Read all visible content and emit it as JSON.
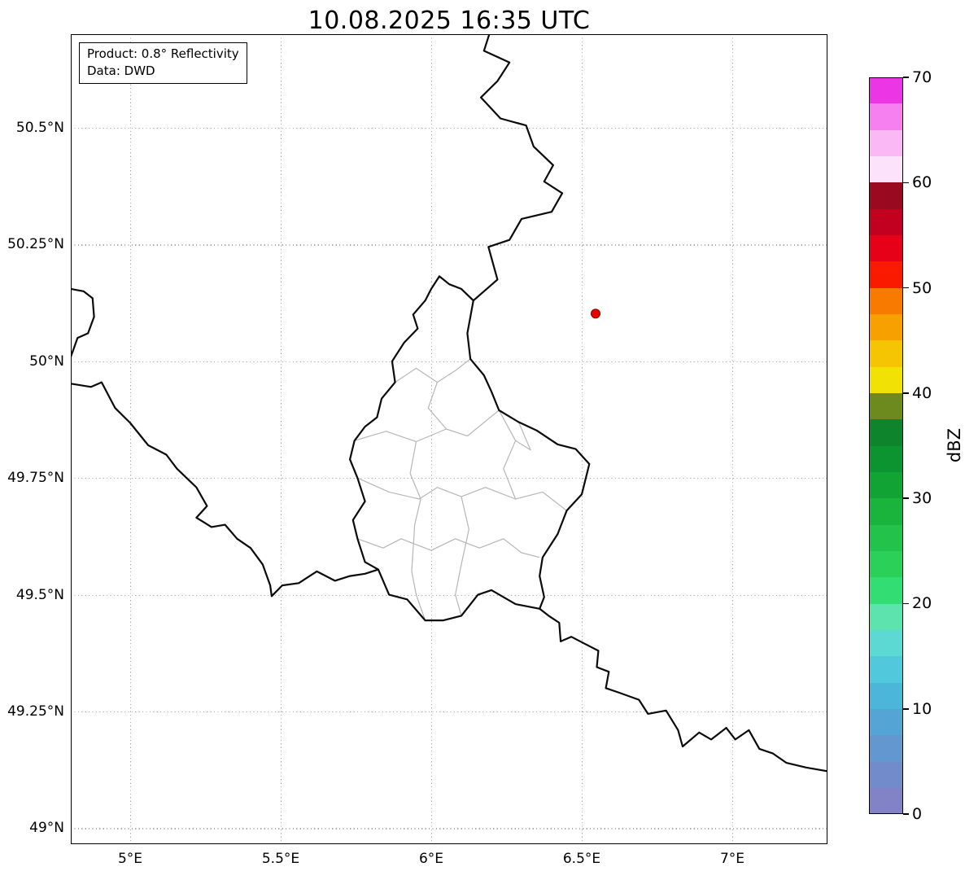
{
  "title": "10.08.2025 16:35 UTC",
  "info_box": {
    "line1": "Product: 0.8° Reflectivity",
    "line2": "Data: DWD"
  },
  "map": {
    "extent": {
      "lon_min": 4.8027,
      "lon_max": 7.3162,
      "lat_min": 48.9658,
      "lat_max": 50.7005
    },
    "x_ticks": [
      {
        "label": "5°E",
        "lon": 5.0
      },
      {
        "label": "5.5°E",
        "lon": 5.5
      },
      {
        "label": "6°E",
        "lon": 6.0
      },
      {
        "label": "6.5°E",
        "lon": 6.5
      },
      {
        "label": "7°E",
        "lon": 7.0
      }
    ],
    "y_ticks": [
      {
        "label": "49°N",
        "lat": 49.0
      },
      {
        "label": "49.25°N",
        "lat": 49.25
      },
      {
        "label": "49.5°N",
        "lat": 49.5
      },
      {
        "label": "49.75°N",
        "lat": 49.75
      },
      {
        "label": "50°N",
        "lat": 50.0
      },
      {
        "label": "50.25°N",
        "lat": 50.25
      },
      {
        "label": "50.5°N",
        "lat": 50.5
      }
    ],
    "radar_marker": {
      "lon": 6.546,
      "lat": 50.102,
      "color": "#e10600"
    },
    "country_borders": [
      {
        "name": "belgium-germany",
        "points": [
          [
            6.195,
            50.705
          ],
          [
            6.175,
            50.665
          ],
          [
            6.26,
            50.64
          ],
          [
            6.22,
            50.6
          ],
          [
            6.165,
            50.565
          ],
          [
            6.23,
            50.52
          ],
          [
            6.315,
            50.505
          ],
          [
            6.34,
            50.46
          ],
          [
            6.405,
            50.42
          ],
          [
            6.375,
            50.385
          ],
          [
            6.435,
            50.36
          ],
          [
            6.4,
            50.32
          ],
          [
            6.3,
            50.305
          ],
          [
            6.26,
            50.26
          ],
          [
            6.19,
            50.245
          ],
          [
            6.22,
            50.175
          ],
          [
            6.14,
            50.13
          ]
        ]
      },
      {
        "name": "luxembourg",
        "points": [
          [
            6.14,
            50.13
          ],
          [
            6.12,
            50.06
          ],
          [
            6.13,
            50.005
          ],
          [
            6.175,
            49.97
          ],
          [
            6.2,
            49.935
          ],
          [
            6.225,
            49.895
          ],
          [
            6.29,
            49.87
          ],
          [
            6.35,
            49.852
          ],
          [
            6.42,
            49.822
          ],
          [
            6.48,
            49.812
          ],
          [
            6.525,
            49.78
          ],
          [
            6.5,
            49.715
          ],
          [
            6.45,
            49.68
          ],
          [
            6.42,
            49.63
          ],
          [
            6.37,
            49.58
          ],
          [
            6.36,
            49.54
          ],
          [
            6.375,
            49.495
          ],
          [
            6.36,
            49.47
          ],
          [
            6.28,
            49.48
          ],
          [
            6.2,
            49.51
          ],
          [
            6.155,
            49.5
          ],
          [
            6.1,
            49.455
          ],
          [
            6.04,
            49.445
          ],
          [
            5.98,
            49.445
          ],
          [
            5.92,
            49.49
          ],
          [
            5.86,
            49.5
          ],
          [
            5.824,
            49.554
          ],
          [
            5.78,
            49.57
          ],
          [
            5.755,
            49.62
          ],
          [
            5.74,
            49.66
          ],
          [
            5.78,
            49.7
          ],
          [
            5.755,
            49.75
          ],
          [
            5.73,
            49.79
          ],
          [
            5.745,
            49.83
          ],
          [
            5.78,
            49.86
          ],
          [
            5.82,
            49.88
          ],
          [
            5.835,
            49.92
          ],
          [
            5.88,
            49.955
          ],
          [
            5.87,
            50.0
          ],
          [
            5.91,
            50.04
          ],
          [
            5.955,
            50.07
          ],
          [
            5.94,
            50.1
          ],
          [
            5.98,
            50.13
          ],
          [
            6.0,
            50.155
          ],
          [
            6.027,
            50.182
          ],
          [
            6.06,
            50.165
          ],
          [
            6.1,
            50.155
          ],
          [
            6.14,
            50.13
          ]
        ]
      },
      {
        "name": "france-belgium",
        "points": [
          [
            4.803,
            49.952
          ],
          [
            4.87,
            49.945
          ],
          [
            4.905,
            49.955
          ],
          [
            4.95,
            49.9
          ],
          [
            5.0,
            49.868
          ],
          [
            5.06,
            49.82
          ],
          [
            5.12,
            49.8
          ],
          [
            5.155,
            49.77
          ],
          [
            5.22,
            49.73
          ],
          [
            5.255,
            49.69
          ],
          [
            5.22,
            49.665
          ],
          [
            5.27,
            49.645
          ],
          [
            5.315,
            49.65
          ],
          [
            5.355,
            49.62
          ],
          [
            5.4,
            49.6
          ],
          [
            5.44,
            49.565
          ],
          [
            5.465,
            49.52
          ],
          [
            5.47,
            49.497
          ],
          [
            5.505,
            49.52
          ],
          [
            5.56,
            49.525
          ],
          [
            5.62,
            49.55
          ],
          [
            5.68,
            49.53
          ],
          [
            5.73,
            49.54
          ],
          [
            5.78,
            49.545
          ],
          [
            5.824,
            49.554
          ]
        ]
      },
      {
        "name": "france-belgium-givet",
        "points": [
          [
            4.803,
            50.155
          ],
          [
            4.845,
            50.15
          ],
          [
            4.875,
            50.135
          ],
          [
            4.88,
            50.095
          ],
          [
            4.86,
            50.06
          ],
          [
            4.825,
            50.05
          ],
          [
            4.803,
            50.01
          ]
        ]
      },
      {
        "name": "france-germany",
        "points": [
          [
            6.36,
            49.47
          ],
          [
            6.39,
            49.455
          ],
          [
            6.425,
            49.44
          ],
          [
            6.43,
            49.4
          ],
          [
            6.465,
            49.41
          ],
          [
            6.51,
            49.395
          ],
          [
            6.555,
            49.38
          ],
          [
            6.55,
            49.345
          ],
          [
            6.59,
            49.335
          ],
          [
            6.58,
            49.3
          ],
          [
            6.625,
            49.29
          ],
          [
            6.69,
            49.275
          ],
          [
            6.72,
            49.245
          ],
          [
            6.78,
            49.252
          ],
          [
            6.82,
            49.21
          ],
          [
            6.835,
            49.175
          ],
          [
            6.89,
            49.205
          ],
          [
            6.93,
            49.19
          ],
          [
            6.98,
            49.215
          ],
          [
            7.01,
            49.19
          ],
          [
            7.055,
            49.21
          ],
          [
            7.09,
            49.17
          ],
          [
            7.135,
            49.16
          ],
          [
            7.18,
            49.14
          ],
          [
            7.245,
            49.13
          ],
          [
            7.317,
            49.122
          ]
        ]
      }
    ],
    "district_borders": [
      [
        [
          5.88,
          49.955
        ],
        [
          5.95,
          49.985
        ],
        [
          6.02,
          49.955
        ],
        [
          6.08,
          49.98
        ],
        [
          6.13,
          50.005
        ]
      ],
      [
        [
          5.745,
          49.83
        ],
        [
          5.85,
          49.85
        ],
        [
          5.95,
          49.828
        ],
        [
          6.05,
          49.855
        ],
        [
          6.12,
          49.84
        ],
        [
          6.225,
          49.895
        ]
      ],
      [
        [
          5.95,
          49.828
        ],
        [
          5.93,
          49.76
        ],
        [
          5.965,
          49.705
        ],
        [
          5.945,
          49.65
        ],
        [
          5.935,
          49.55
        ],
        [
          5.95,
          49.5
        ],
        [
          5.98,
          49.445
        ]
      ],
      [
        [
          5.755,
          49.75
        ],
        [
          5.86,
          49.72
        ],
        [
          5.96,
          49.705
        ],
        [
          6.02,
          49.73
        ],
        [
          6.1,
          49.71
        ],
        [
          6.18,
          49.73
        ],
        [
          6.28,
          49.705
        ],
        [
          6.37,
          49.72
        ],
        [
          6.45,
          49.68
        ]
      ],
      [
        [
          5.755,
          49.62
        ],
        [
          5.84,
          49.6
        ],
        [
          5.9,
          49.62
        ],
        [
          6.0,
          49.595
        ],
        [
          6.08,
          49.62
        ],
        [
          6.16,
          49.6
        ],
        [
          6.24,
          49.62
        ],
        [
          6.3,
          49.59
        ],
        [
          6.36,
          49.58
        ]
      ],
      [
        [
          6.1,
          49.71
        ],
        [
          6.125,
          49.64
        ],
        [
          6.1,
          49.565
        ],
        [
          6.08,
          49.5
        ],
        [
          6.1,
          49.455
        ]
      ],
      [
        [
          6.225,
          49.895
        ],
        [
          6.28,
          49.83
        ],
        [
          6.24,
          49.77
        ],
        [
          6.28,
          49.705
        ]
      ],
      [
        [
          6.02,
          49.955
        ],
        [
          5.99,
          49.9
        ],
        [
          6.05,
          49.855
        ]
      ],
      [
        [
          6.29,
          49.87
        ],
        [
          6.33,
          49.81
        ],
        [
          6.28,
          49.83
        ]
      ]
    ]
  },
  "colorbar": {
    "label": "dBZ",
    "unit_min": 0,
    "unit_max": 70,
    "step_dbz": 2.5,
    "tick_values": [
      0,
      10,
      20,
      30,
      40,
      50,
      60,
      70
    ],
    "colors_low_to_high": [
      "#8282c6",
      "#728ccb",
      "#6297d0",
      "#54a4d5",
      "#4bb5da",
      "#52c8dc",
      "#5cd9d2",
      "#5ce3ae",
      "#32dd73",
      "#2bd058",
      "#23c24a",
      "#1ab43d",
      "#11a434",
      "#0c9430",
      "#0e842c",
      "#6d8a1e",
      "#f2e105",
      "#f5c503",
      "#f7a002",
      "#f97a01",
      "#fa1a00",
      "#e60018",
      "#c2001f",
      "#99091f",
      "#fce3fb",
      "#fab9f5",
      "#f680ef",
      "#ec35e5"
    ]
  }
}
